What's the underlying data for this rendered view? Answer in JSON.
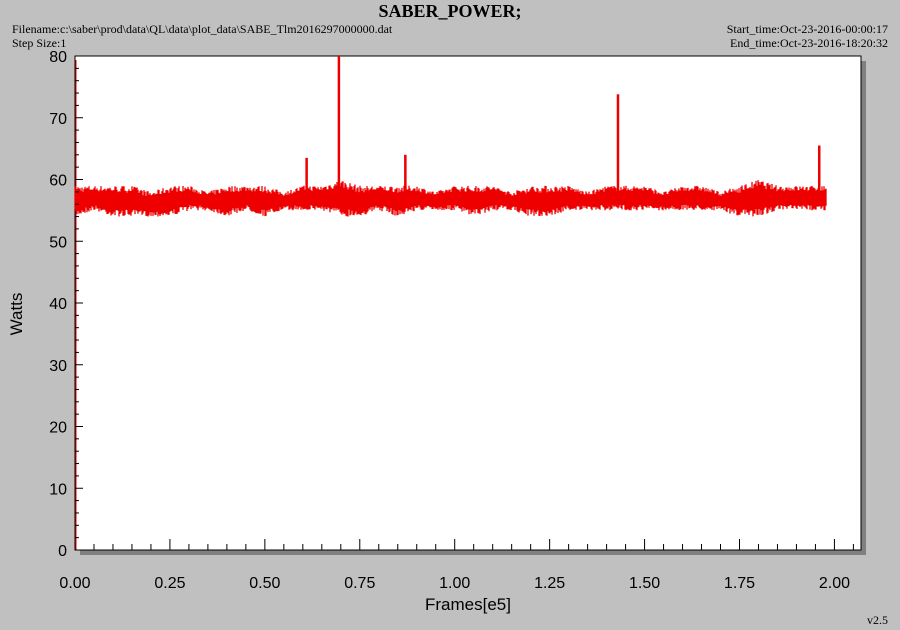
{
  "header": {
    "title": "SABER_POWER;",
    "filename": "Filename:c:\\saber\\prod\\data\\QL\\data\\plot_data\\SABE_Tlm2016297000000.dat",
    "step_size": "Step Size:1",
    "start_time": "Start_time:Oct-23-2016-00:00:17",
    "end_time": "End_time:Oct-23-2016-18:20:32"
  },
  "version": "v2.5",
  "colors": {
    "line": "#ee0000",
    "plot_bg": "#ffffff",
    "window_bg": "#c0c0c0",
    "axis": "#000000"
  },
  "chart_data": {
    "type": "line",
    "title": "SABER_POWER;",
    "xlabel": "Frames[e5]",
    "ylabel": "Watts",
    "xlim": [
      0.0,
      2.07
    ],
    "ylim": [
      0,
      80
    ],
    "x_ticks": [
      "0.00",
      "0.25",
      "0.50",
      "0.75",
      "1.00",
      "1.25",
      "1.50",
      "1.75",
      "2.00"
    ],
    "y_ticks": [
      "0",
      "10",
      "20",
      "30",
      "40",
      "50",
      "60",
      "70",
      "80"
    ],
    "grid": false,
    "series": [
      {
        "color": "#ee0000",
        "x": [
          0.0,
          0.05,
          0.1,
          0.15,
          0.2,
          0.25,
          0.3,
          0.35,
          0.4,
          0.45,
          0.5,
          0.55,
          0.6,
          0.65,
          0.7,
          0.75,
          0.8,
          0.85,
          0.9,
          0.95,
          1.0,
          1.05,
          1.1,
          1.15,
          1.2,
          1.25,
          1.3,
          1.35,
          1.4,
          1.45,
          1.5,
          1.55,
          1.6,
          1.65,
          1.7,
          1.75,
          1.8,
          1.85,
          1.9,
          1.95,
          1.98
        ],
        "y_min": [
          54,
          55,
          54,
          54,
          54,
          54,
          55,
          55,
          54,
          55,
          54,
          55,
          55,
          55,
          54,
          54,
          55,
          54,
          55,
          55,
          55,
          54,
          55,
          55,
          54,
          54,
          55,
          55,
          55,
          55,
          55,
          55,
          55,
          55,
          55,
          54,
          54,
          55,
          55,
          55,
          55
        ],
        "y_max": [
          59,
          59,
          59,
          59,
          58,
          59,
          59,
          58,
          59,
          59,
          59,
          58,
          59,
          59,
          60,
          59,
          59,
          59,
          59,
          58,
          59,
          59,
          59,
          58,
          59,
          59,
          59,
          58,
          59,
          59,
          59,
          58,
          59,
          59,
          58,
          59,
          60,
          59,
          59,
          59,
          59
        ]
      }
    ],
    "spikes": [
      {
        "x": 0.61,
        "y": 63.5
      },
      {
        "x": 0.695,
        "y": 80
      },
      {
        "x": 0.87,
        "y": 64
      },
      {
        "x": 1.43,
        "y": 73.8
      },
      {
        "x": 1.96,
        "y": 65.5
      }
    ]
  }
}
